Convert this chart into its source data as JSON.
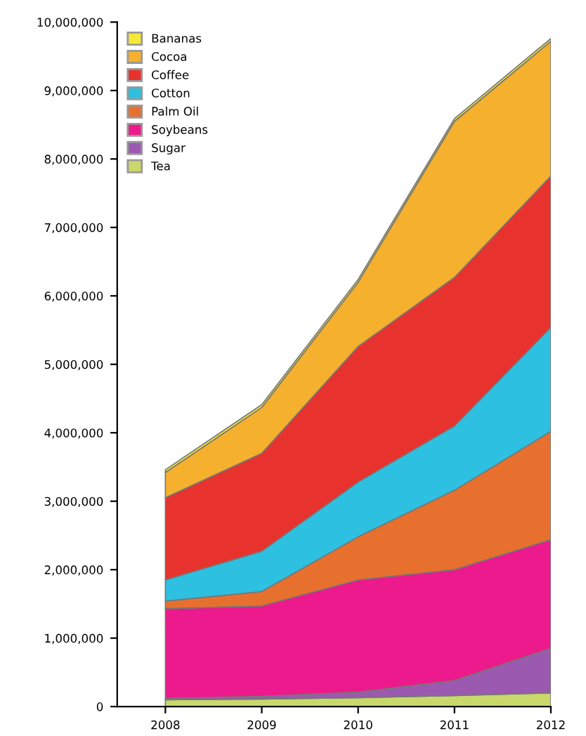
{
  "chart_data": {
    "type": "area",
    "stacked": true,
    "categories": [
      "2008",
      "2009",
      "2010",
      "2011",
      "2012"
    ],
    "series": [
      {
        "name": "Tea",
        "color": "#c8d86a",
        "values": [
          100000,
          110000,
          130000,
          160000,
          200000
        ]
      },
      {
        "name": "Sugar",
        "color": "#9b59b0",
        "values": [
          20000,
          40000,
          80000,
          220000,
          650000
        ]
      },
      {
        "name": "Soybeans",
        "color": "#ec1a8c",
        "values": [
          1310000,
          1320000,
          1640000,
          1620000,
          1590000
        ]
      },
      {
        "name": "Palm Oil",
        "color": "#e8702e",
        "values": [
          110000,
          210000,
          630000,
          1160000,
          1580000
        ]
      },
      {
        "name": "Cotton",
        "color": "#2ec0e0",
        "values": [
          310000,
          590000,
          800000,
          940000,
          1520000
        ]
      },
      {
        "name": "Coffee",
        "color": "#e8322e",
        "values": [
          1200000,
          1430000,
          1980000,
          2170000,
          2210000
        ]
      },
      {
        "name": "Cocoa",
        "color": "#f5b02e",
        "values": [
          370000,
          670000,
          940000,
          2280000,
          1970000
        ]
      },
      {
        "name": "Bananas",
        "color": "#f5e83a",
        "values": [
          40000,
          40000,
          40000,
          40000,
          40000
        ]
      }
    ],
    "ylim": [
      0,
      10000000
    ],
    "yticks": [
      0,
      {
        "value": 1000000,
        "label": "1,000,000"
      },
      {
        "value": 2000000,
        "label": "2,000,000"
      },
      {
        "value": 3000000,
        "label": "3,000,000"
      },
      {
        "value": 4000000,
        "label": "4,000,000"
      },
      {
        "value": 5000000,
        "label": "5,000,000"
      },
      {
        "value": 6000000,
        "label": "6,000,000"
      },
      {
        "value": 7000000,
        "label": "7,000,000"
      },
      {
        "value": 8000000,
        "label": "8,000,000"
      },
      {
        "value": 9000000,
        "label": "9,000,000"
      },
      {
        "value": 10000000,
        "label": "10,000,000"
      }
    ],
    "legend": "top left",
    "grid": false
  }
}
